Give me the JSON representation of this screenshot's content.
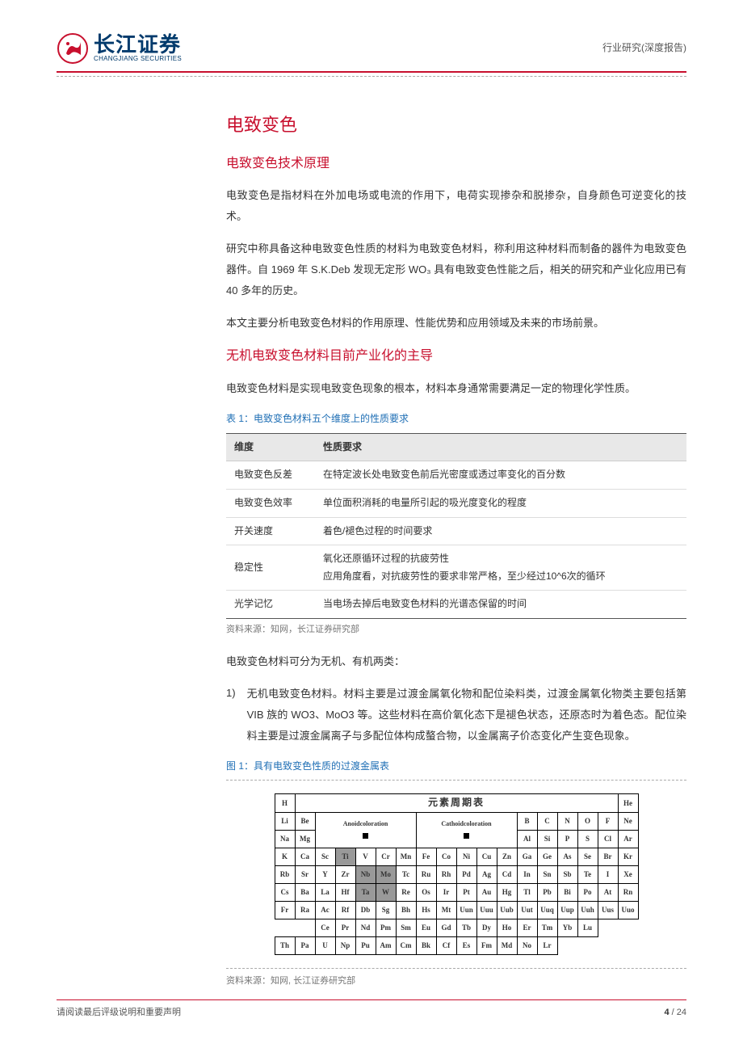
{
  "header": {
    "logo_cn": "长江证券",
    "logo_en": "CHANGJIANG SECURITIES",
    "category": "行业研究(深度报告)"
  },
  "section_title": "电致变色",
  "subsections": {
    "s1": {
      "title": "电致变色技术原理",
      "p1": "电致变色是指材料在外加电场或电流的作用下，电荷实现掺杂和脱掺杂，自身颜色可逆变化的技术。",
      "p2": "研究中称具备这种电致变色性质的材料为电致变色材料，称利用这种材料而制备的器件为电致变色器件。自 1969 年 S.K.Deb 发现无定形 WO₃ 具有电致变色性能之后，相关的研究和产业化应用已有 40 多年的历史。",
      "p3": "本文主要分析电致变色材料的作用原理、性能优势和应用领域及未来的市场前景。"
    },
    "s2": {
      "title": "无机电致变色材料目前产业化的主导",
      "p1": "电致变色材料是实现电致变色现象的根本，材料本身通常需要满足一定的物理化学性质。"
    }
  },
  "table1": {
    "label": "表 1：电致变色材料五个维度上的性质要求",
    "headers": {
      "c1": "维度",
      "c2": "性质要求"
    },
    "rows": [
      {
        "c1": "电致变色反差",
        "c2": "在特定波长处电致变色前后光密度或透过率变化的百分数"
      },
      {
        "c1": "电致变色效率",
        "c2": "单位面积消耗的电量所引起的吸光度变化的程度"
      },
      {
        "c1": "开关速度",
        "c2": "着色/褪色过程的时间要求"
      },
      {
        "c1": "稳定性",
        "c2": "氧化还原循环过程的抗疲劳性\n应用角度看，对抗疲劳性的要求非常严格，至少经过10^6次的循环"
      },
      {
        "c1": "光学记忆",
        "c2": "当电场去掉后电致变色材料的光谱态保留的时间"
      }
    ],
    "source": "资料来源：知网，长江证券研究部"
  },
  "post_table_p": "电致变色材料可分为无机、有机两类：",
  "list": {
    "item1": {
      "num": "1)",
      "text": "无机电致变色材料。材料主要是过渡金属氧化物和配位染料类，过渡金属氧化物类主要包括第 VIB 族的 WO3、MoO3 等。这些材料在高价氧化态下是褪色状态，还原态时为着色态。配位染料主要是过渡金属离子与多配位体构成螯合物，以金属离子价态变化产生变色现象。"
    }
  },
  "figure1": {
    "label": "图 1：具有电致变色性质的过渡金属表",
    "title": "元素周期表",
    "legend_anoid": "Anoidcoloration",
    "legend_cathoid": "Cathoidcoloration",
    "source": "资料来源：知网, 长江证券研究部",
    "rows": {
      "r1": [
        "H",
        "",
        "",
        "",
        "",
        "",
        "",
        "",
        "",
        "",
        "",
        "",
        "",
        "",
        "",
        "",
        "",
        "He"
      ],
      "r2": [
        "Li",
        "Be",
        "",
        "",
        "",
        "",
        "",
        "",
        "",
        "",
        "",
        "",
        "B",
        "C",
        "N",
        "O",
        "F",
        "Ne"
      ],
      "r3": [
        "Na",
        "Mg",
        "",
        "",
        "",
        "",
        "",
        "",
        "",
        "",
        "",
        "",
        "Al",
        "Si",
        "P",
        "S",
        "Cl",
        "Ar"
      ],
      "r4": [
        "K",
        "Ca",
        "Sc",
        "Ti",
        "V",
        "Cr",
        "Mn",
        "Fe",
        "Co",
        "Ni",
        "Cu",
        "Zn",
        "Ga",
        "Ge",
        "As",
        "Se",
        "Br",
        "Kr"
      ],
      "r5": [
        "Rb",
        "Sr",
        "Y",
        "Zr",
        "Nb",
        "Mo",
        "Tc",
        "Ru",
        "Rh",
        "Pd",
        "Ag",
        "Cd",
        "In",
        "Sn",
        "Sb",
        "Te",
        "I",
        "Xe"
      ],
      "r6": [
        "Cs",
        "Ba",
        "La",
        "Hf",
        "Ta",
        "W",
        "Re",
        "Os",
        "Ir",
        "Pt",
        "Au",
        "Hg",
        "Tl",
        "Pb",
        "Bi",
        "Po",
        "At",
        "Rn"
      ],
      "r7": [
        "Fr",
        "Ra",
        "Ac",
        "Rf",
        "Db",
        "Sg",
        "Bh",
        "Hs",
        "Mt",
        "Uun",
        "Uuu",
        "Uub",
        "Uut",
        "Uuq",
        "Uup",
        "Uuh",
        "Uus",
        "Uuo"
      ],
      "r8": [
        "",
        "",
        "Ce",
        "Pr",
        "Nd",
        "Pm",
        "Sm",
        "Eu",
        "Gd",
        "Tb",
        "Dy",
        "Ho",
        "Er",
        "Tm",
        "Yb",
        "Lu",
        "",
        ""
      ],
      "r9": [
        "Th",
        "Pa",
        "U",
        "Np",
        "Pu",
        "Am",
        "Cm",
        "Bk",
        "Cf",
        "Es",
        "Fm",
        "Md",
        "No",
        "Lr",
        "",
        "",
        "",
        ""
      ]
    },
    "shaded": [
      "Ti",
      "Nb",
      "Mo",
      "Ta",
      "W"
    ]
  },
  "footer": {
    "left": "请阅读最后评级说明和重要声明",
    "page_current": "4",
    "page_total": "24"
  }
}
